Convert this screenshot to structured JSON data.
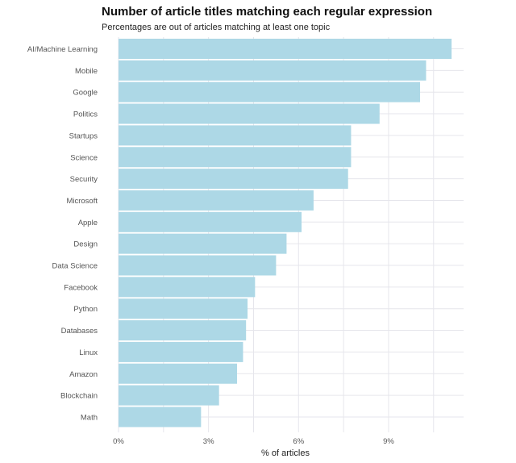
{
  "chart_data": {
    "type": "bar",
    "orientation": "horizontal",
    "title": "Number of article titles matching each regular expression",
    "subtitle": "Percentages are out of articles matching at least one topic",
    "xlabel": "% of articles",
    "ylabel": "",
    "categories": [
      "AI/Machine Learning",
      "Mobile",
      "Google",
      "Politics",
      "Startups",
      "Science",
      "Security",
      "Microsoft",
      "Apple",
      "Design",
      "Data Science",
      "Facebook",
      "Python",
      "Databases",
      "Linux",
      "Amazon",
      "Blockchain",
      "Math"
    ],
    "values": [
      11.1,
      10.25,
      10.05,
      8.7,
      7.75,
      7.75,
      7.65,
      6.5,
      6.1,
      5.6,
      5.25,
      4.55,
      4.3,
      4.25,
      4.15,
      3.95,
      3.35,
      2.75
    ],
    "xlim": [
      0,
      11.5
    ],
    "xticks": [
      0,
      3,
      6,
      9
    ],
    "xtick_labels": [
      "0%",
      "3%",
      "6%",
      "9%"
    ],
    "grid": true,
    "bar_color": "#add8e6",
    "grid_color": "#e6e6ec"
  }
}
